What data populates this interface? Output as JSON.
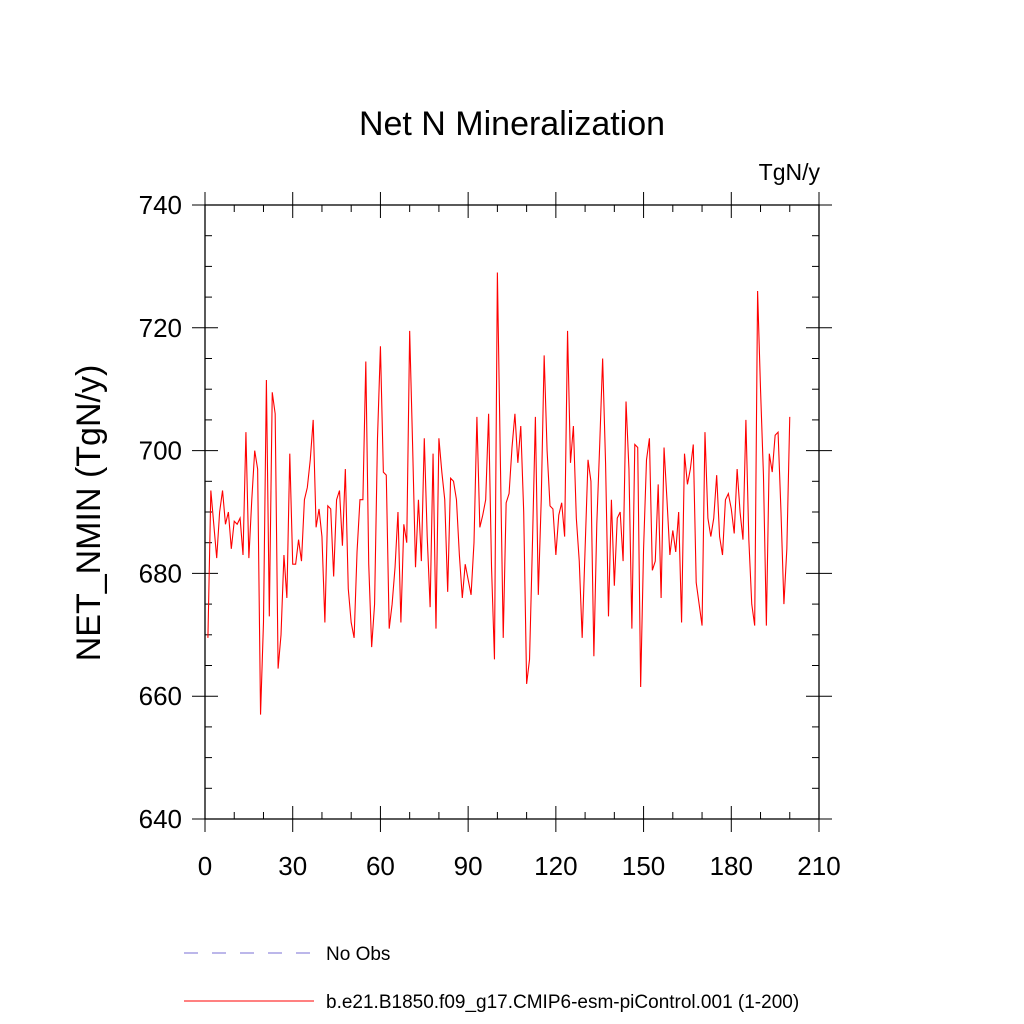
{
  "chart_data": {
    "type": "line",
    "title": "Net N Mineralization",
    "units": "TgN/y",
    "xlabel": "",
    "ylabel": "NET_NMIN  (TgN/y)",
    "xlim": [
      0,
      210
    ],
    "ylim": [
      640,
      740
    ],
    "xticks": [
      0,
      30,
      60,
      90,
      120,
      150,
      180,
      210
    ],
    "yticks": [
      640,
      660,
      680,
      700,
      720,
      740
    ],
    "x_tick_labels": [
      "0",
      "30",
      "60",
      "90",
      "120",
      "150",
      "180",
      "210"
    ],
    "y_tick_labels": [
      "640",
      "660",
      "680",
      "700",
      "720",
      "740"
    ],
    "x_minor_step": 10,
    "y_minor_step": 5,
    "series": [
      {
        "name": "b.e21.B1850.f09_g17.CMIP6-esm-piControl.001 (1-200)",
        "color": "#ff0000",
        "style": "solid",
        "x_start": 1,
        "values": [
          669.5,
          693.5,
          688.0,
          682.5,
          690.0,
          693.5,
          688.0,
          690.0,
          684.0,
          688.5,
          688.0,
          689.0,
          683.0,
          703.0,
          682.5,
          692.0,
          700.0,
          697.0,
          657.0,
          672.0,
          711.5,
          673.0,
          709.5,
          706.0,
          664.5,
          670.0,
          683.0,
          676.0,
          699.5,
          681.5,
          681.5,
          685.5,
          682.0,
          692.0,
          694.0,
          698.5,
          705.0,
          687.5,
          690.5,
          686.0,
          672.0,
          691.0,
          690.5,
          679.5,
          692.0,
          693.5,
          684.5,
          697.0,
          677.5,
          672.0,
          669.5,
          683.5,
          692.0,
          692.0,
          714.5,
          681.5,
          668.0,
          675.0,
          702.0,
          717.0,
          696.5,
          696.0,
          671.0,
          675.0,
          681.0,
          690.0,
          672.0,
          688.0,
          685.0,
          719.5,
          701.0,
          681.0,
          692.0,
          682.0,
          702.0,
          686.0,
          674.5,
          699.5,
          671.0,
          702.0,
          696.5,
          692.0,
          677.0,
          695.5,
          695.0,
          692.0,
          683.0,
          676.0,
          681.5,
          679.0,
          676.5,
          685.0,
          705.5,
          687.5,
          689.5,
          692.0,
          706.0,
          681.0,
          666.0,
          729.0,
          699.0,
          669.5,
          691.5,
          693.0,
          700.5,
          706.0,
          698.0,
          704.0,
          690.0,
          662.0,
          666.0,
          685.0,
          705.5,
          676.5,
          692.0,
          715.5,
          700.0,
          691.0,
          690.5,
          683.0,
          689.5,
          691.5,
          686.0,
          719.5,
          698.0,
          704.0,
          689.0,
          682.0,
          669.5,
          684.0,
          698.5,
          695.0,
          666.5,
          688.0,
          701.0,
          715.0,
          698.0,
          673.0,
          692.0,
          678.0,
          689.0,
          690.0,
          682.0,
          708.0,
          697.0,
          671.0,
          701.0,
          700.5,
          661.5,
          684.0,
          698.5,
          702.0,
          680.5,
          682.0,
          694.5,
          676.0,
          700.5,
          692.0,
          683.0,
          687.0,
          683.5,
          690.0,
          672.0,
          699.5,
          694.5,
          697.0,
          701.0,
          678.5,
          675.0,
          671.5,
          703.0,
          689.0,
          686.0,
          689.0,
          696.0,
          686.0,
          683.0,
          692.0,
          693.0,
          690.5,
          686.5,
          697.0,
          690.0,
          685.5,
          705.0,
          685.5,
          675.0,
          671.5,
          726.0,
          710.0,
          696.0,
          671.5,
          699.5,
          696.5,
          702.5,
          703.0,
          690.0,
          675.0,
          684.0,
          705.5
        ]
      }
    ],
    "legend": [
      {
        "label": "No Obs",
        "color": "#7a6fd6",
        "style": "dashed"
      },
      {
        "label": "b.e21.B1850.f09_g17.CMIP6-esm-piControl.001 (1-200)",
        "color": "#ff0000",
        "style": "solid"
      }
    ]
  }
}
